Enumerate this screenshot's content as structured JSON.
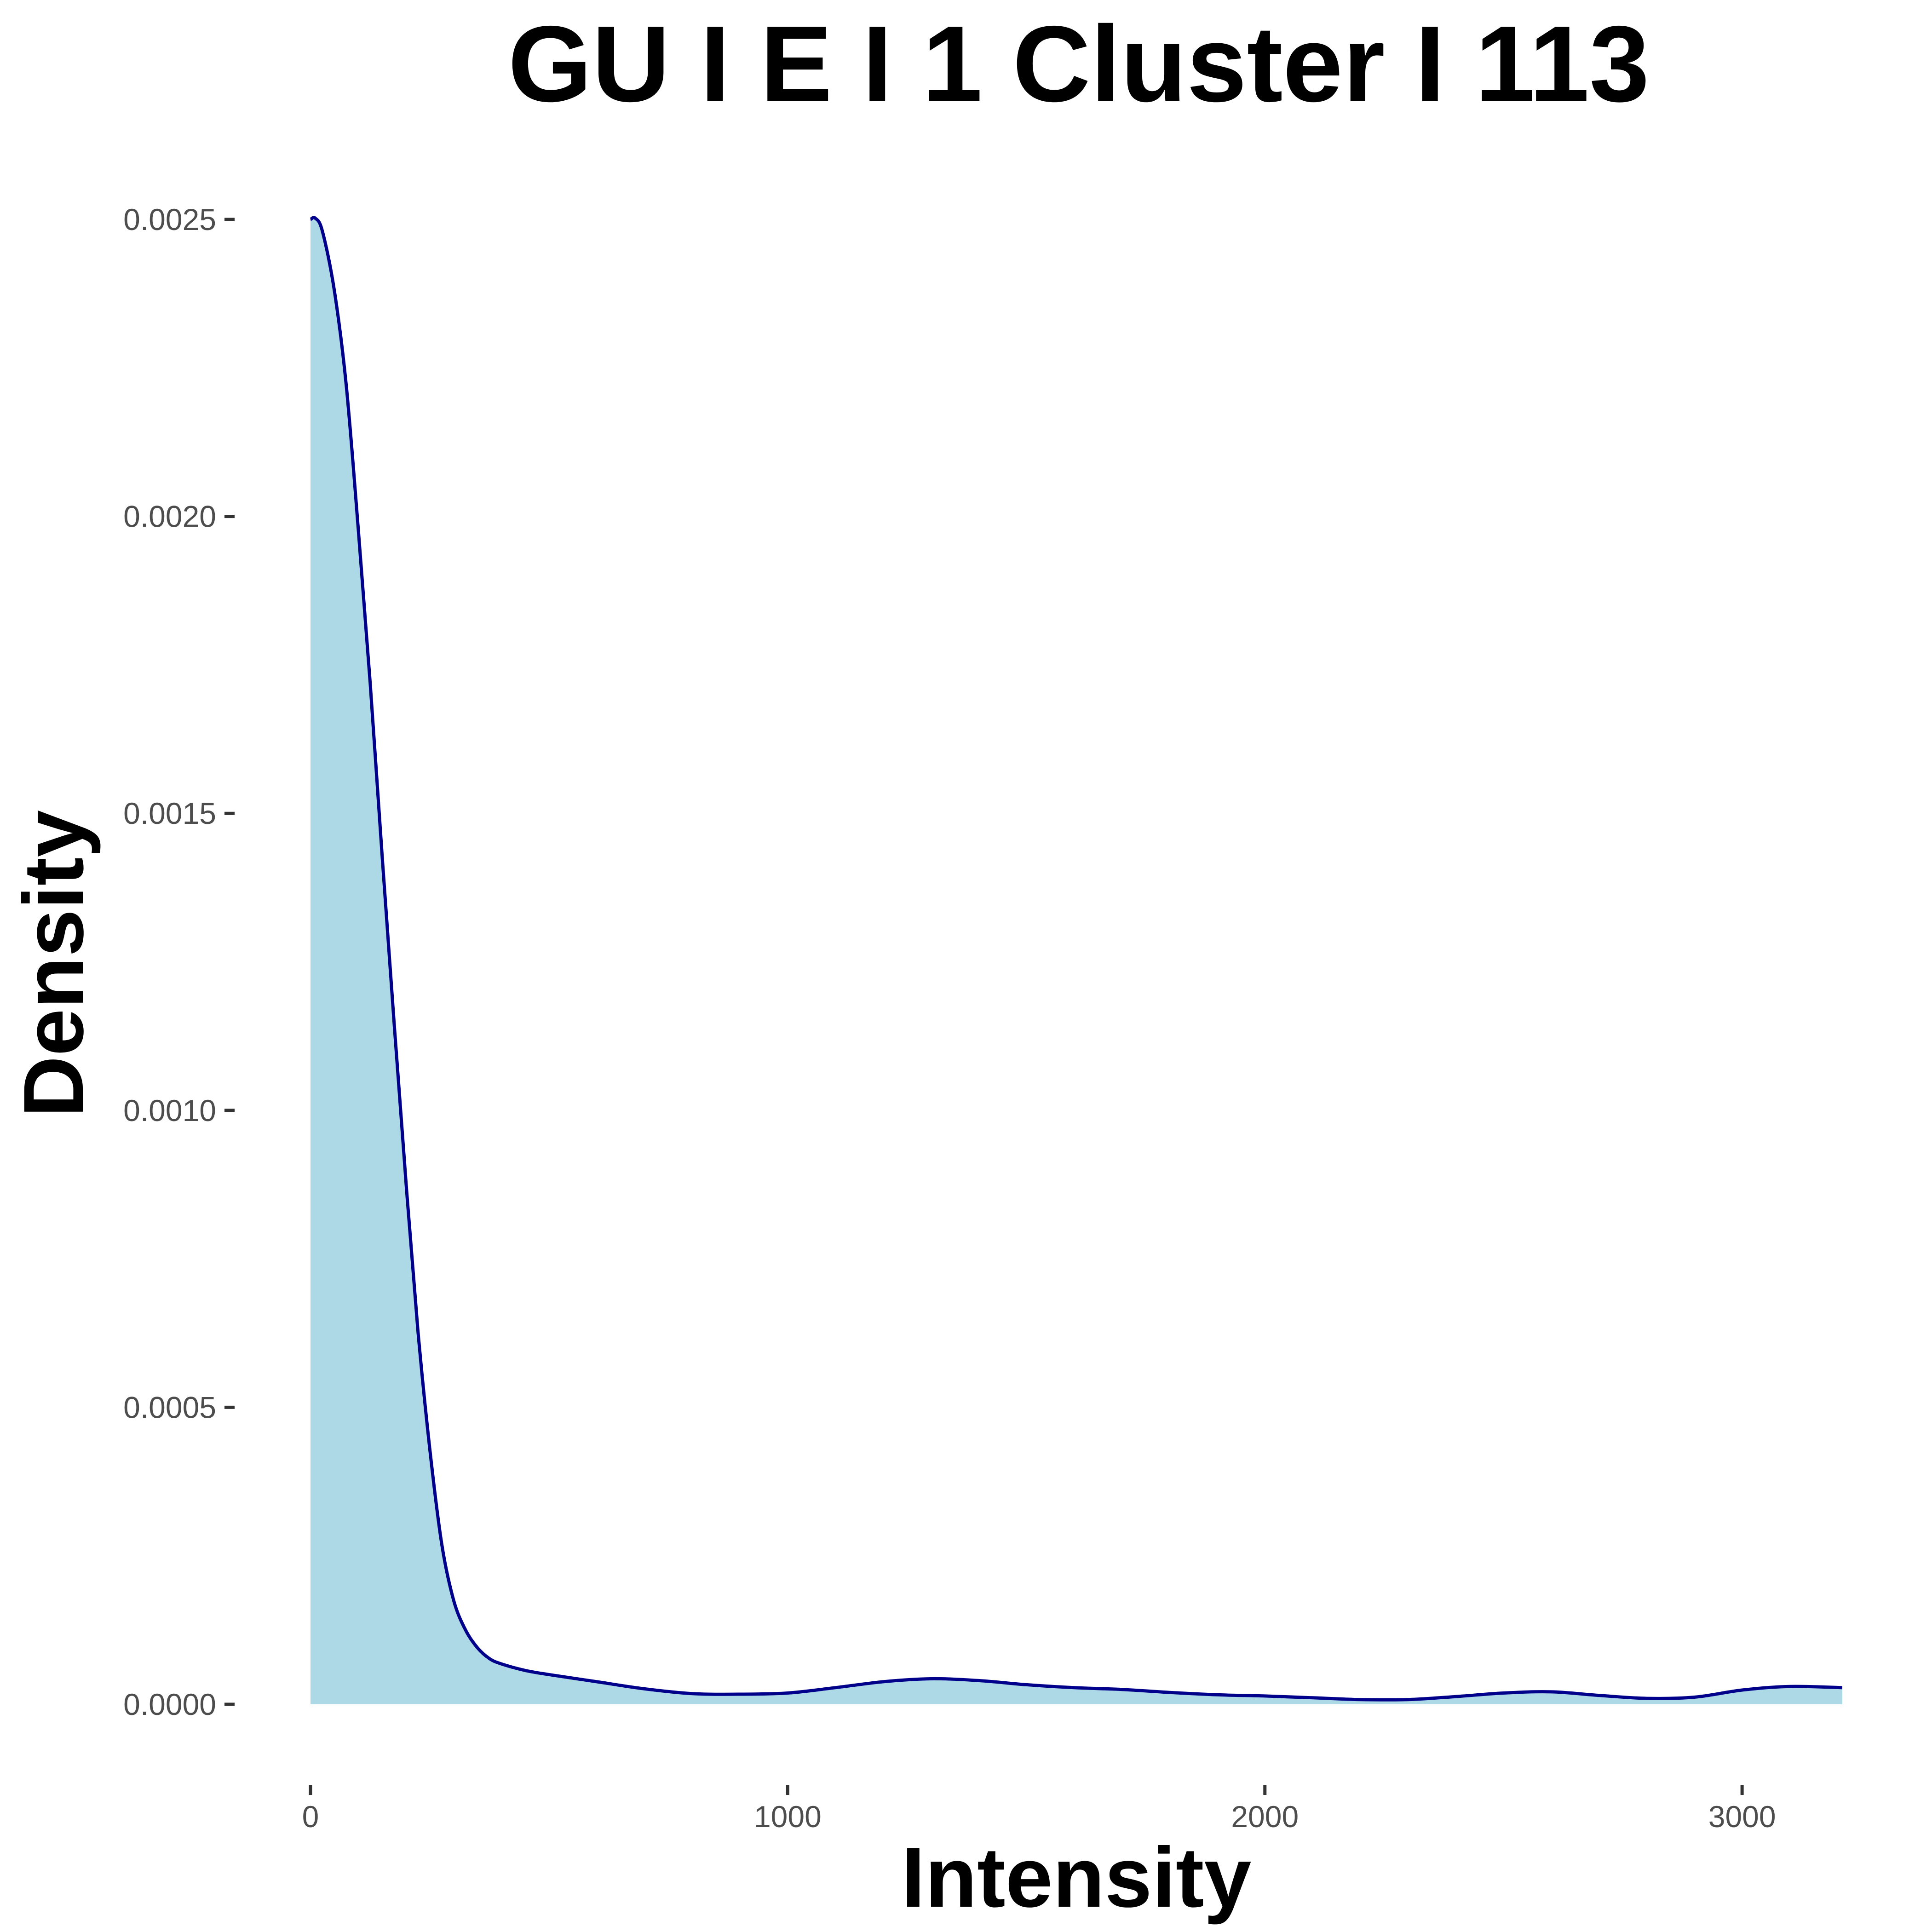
{
  "chart_data": {
    "type": "area",
    "title": "GU I E I 1 Cluster I  113",
    "xlabel": "Intensity",
    "ylabel": "Density",
    "xlim": [
      0,
      3210
    ],
    "ylim": [
      0,
      0.0025
    ],
    "x_ticks": [
      0,
      1000,
      2000,
      3000
    ],
    "x_tick_labels": [
      "0",
      "1000",
      "2000",
      "3000"
    ],
    "y_ticks": [
      0,
      0.0005,
      0.001,
      0.0015,
      0.002,
      0.0025
    ],
    "y_tick_labels": [
      "0.0000",
      "0.0005",
      "0.0010",
      "0.0015",
      "0.0020",
      "0.0025"
    ],
    "grid": false,
    "legend": "none",
    "fill_color": "#add8e6",
    "line_color": "#00008b",
    "series": [
      {
        "x": [
          0,
          10,
          25,
          50,
          75,
          100,
          125,
          150,
          175,
          200,
          225,
          250,
          275,
          300,
          325,
          350,
          375,
          400,
          450,
          500,
          600,
          700,
          800,
          900,
          1000,
          1100,
          1200,
          1300,
          1400,
          1500,
          1600,
          1700,
          1800,
          1900,
          2000,
          2100,
          2200,
          2300,
          2400,
          2500,
          2600,
          2700,
          2800,
          2900,
          3000,
          3100,
          3210
        ],
        "y": [
          0.0025,
          0.002502,
          0.00248,
          0.00238,
          0.00222,
          0.00198,
          0.00172,
          0.00143,
          0.00115,
          0.00088,
          0.00063,
          0.00043,
          0.00027,
          0.000175,
          0.000125,
          9.5e-05,
          7.7e-05,
          6.8e-05,
          5.7e-05,
          5e-05,
          3.8e-05,
          2.6e-05,
          1.8e-05,
          1.7e-05,
          1.9e-05,
          2.8e-05,
          3.8e-05,
          4.3e-05,
          4e-05,
          3.3e-05,
          2.8e-05,
          2.5e-05,
          2e-05,
          1.6e-05,
          1.4e-05,
          1.1e-05,
          8e-06,
          8e-06,
          1.3e-05,
          1.9e-05,
          2.1e-05,
          1.5e-05,
          1e-05,
          1.2e-05,
          2.4e-05,
          3e-05,
          2.8e-05
        ]
      }
    ]
  }
}
